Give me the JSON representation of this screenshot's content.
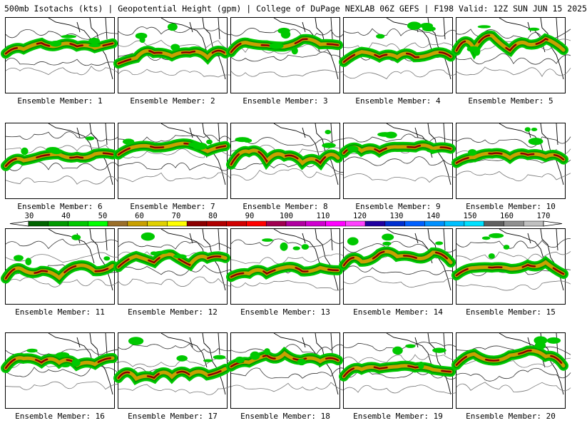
{
  "header": {
    "title": "500mb Isotachs (kts) | Geopotential Height (gpm) | College of DuPage NEXLAB   06Z GEFS | F198 Valid: 12Z SUN JUN 15 2025"
  },
  "colorbar": {
    "labels": [
      "30",
      "40",
      "50",
      "60",
      "70",
      "80",
      "90",
      "100",
      "110",
      "120",
      "130",
      "140",
      "150",
      "160",
      "170"
    ],
    "colors": [
      "#006400",
      "#009a00",
      "#00c800",
      "#00ff00",
      "#9a6f2a",
      "#c8a000",
      "#e0d000",
      "#ffff00",
      "#8b0000",
      "#b00000",
      "#d00000",
      "#ff0000",
      "#a00050",
      "#b000a0",
      "#d000d0",
      "#ff00ff",
      "#ff40ff",
      "#2000a0",
      "#0030d0",
      "#0060ff",
      "#0090ff",
      "#00c0ff",
      "#00e0ff",
      "#606060",
      "#909090",
      "#c0c0c0"
    ]
  },
  "panels": [
    {
      "caption": "Ensemble Member: 1"
    },
    {
      "caption": "Ensemble Member: 2"
    },
    {
      "caption": "Ensemble Member: 3"
    },
    {
      "caption": "Ensemble Member: 4"
    },
    {
      "caption": "Ensemble Member: 5"
    },
    {
      "caption": "Ensemble Member: 6"
    },
    {
      "caption": "Ensemble Member: 7"
    },
    {
      "caption": "Ensemble Member: 8"
    },
    {
      "caption": "Ensemble Member: 9"
    },
    {
      "caption": "Ensemble Member: 10"
    },
    {
      "caption": "Ensemble Member: 11"
    },
    {
      "caption": "Ensemble Member: 12"
    },
    {
      "caption": "Ensemble Member: 13"
    },
    {
      "caption": "Ensemble Member: 14"
    },
    {
      "caption": "Ensemble Member: 15"
    },
    {
      "caption": "Ensemble Member: 16"
    },
    {
      "caption": "Ensemble Member: 17"
    },
    {
      "caption": "Ensemble Member: 18"
    },
    {
      "caption": "Ensemble Member: 19"
    },
    {
      "caption": "Ensemble Member: 20"
    }
  ]
}
